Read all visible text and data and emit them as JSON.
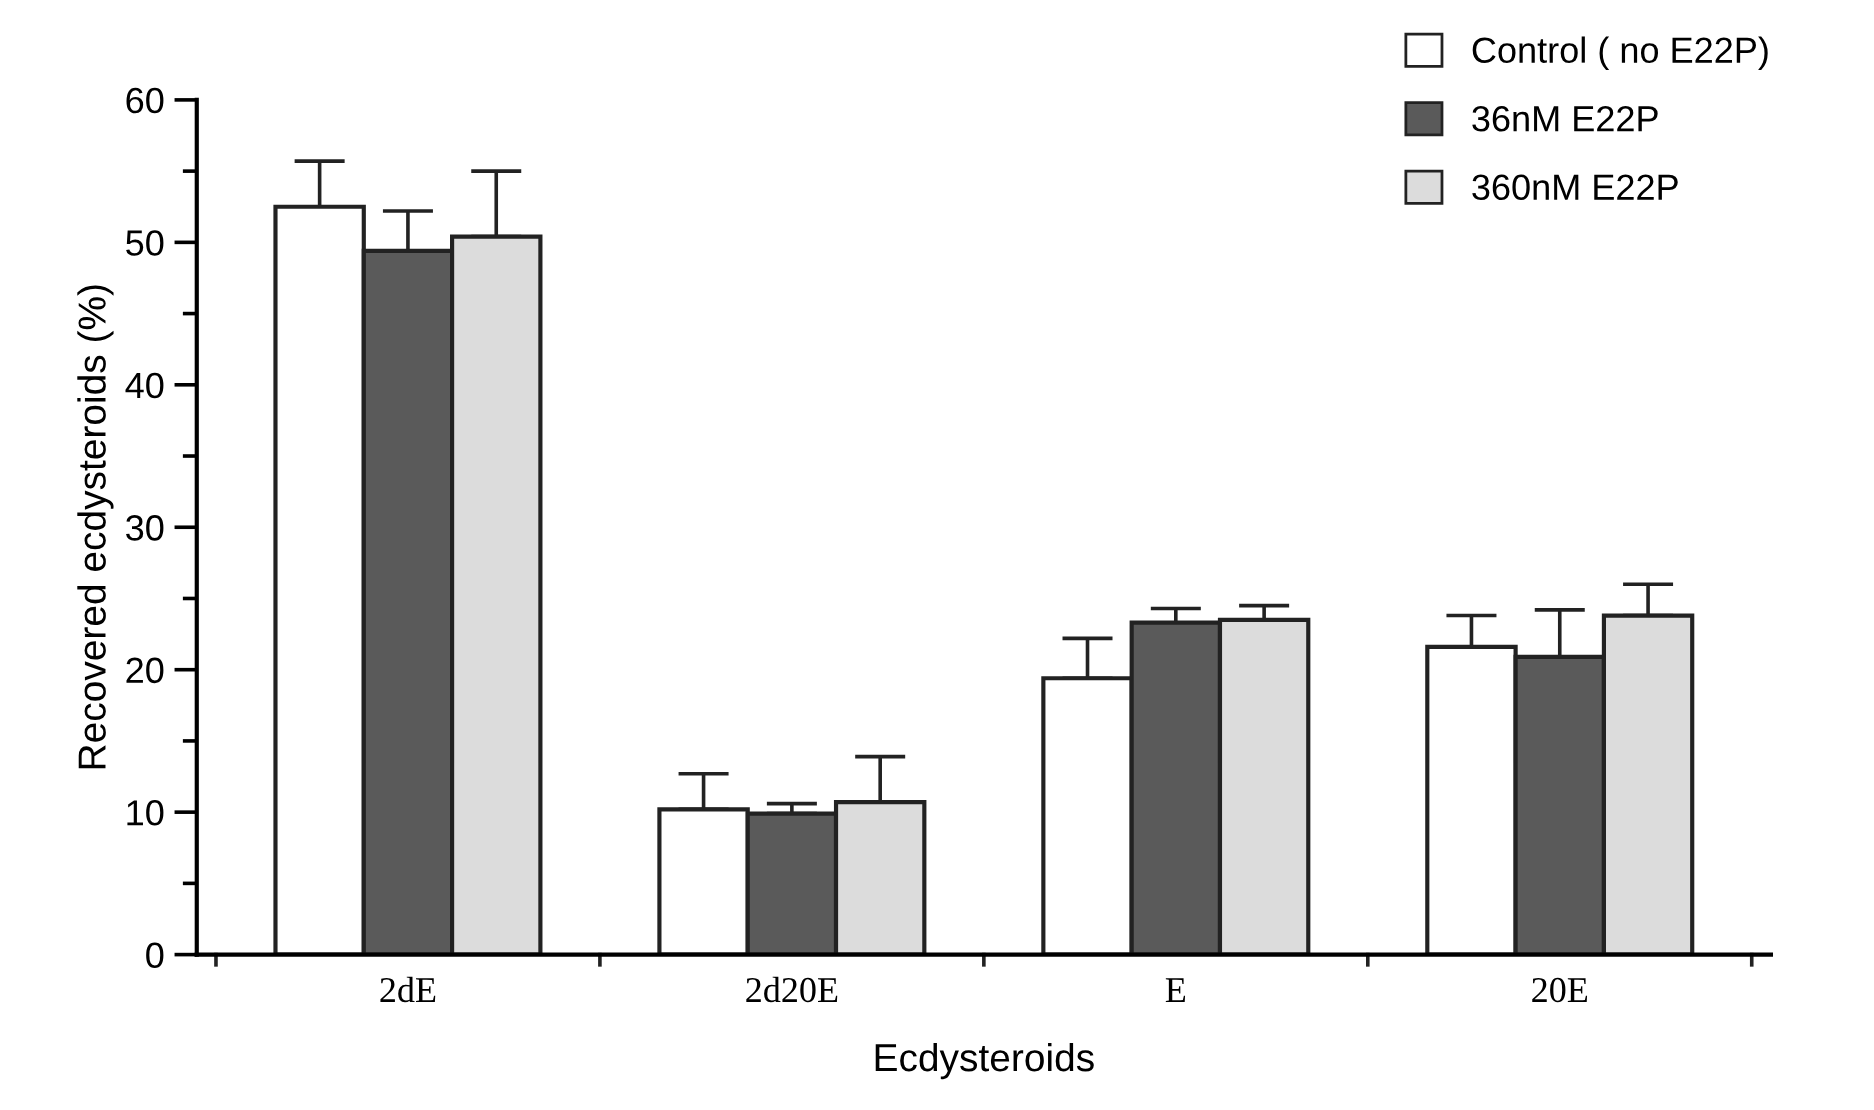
{
  "chart_data": {
    "type": "bar",
    "xlabel": "Ecdysteroids",
    "ylabel": "Recovered ecdysteroids (%)",
    "categories": [
      "2dE",
      "2d20E",
      "E",
      "20E"
    ],
    "series": [
      {
        "name": "Control ( no E22P)",
        "color": "#ffffff",
        "values": [
          52.5,
          10.2,
          19.4,
          21.6
        ],
        "errors": [
          3.2,
          2.5,
          2.8,
          2.2
        ]
      },
      {
        "name": "36nM E22P",
        "color": "#5a5a5a",
        "values": [
          49.4,
          9.9,
          23.3,
          20.9
        ],
        "errors": [
          2.8,
          0.7,
          1.0,
          3.3
        ]
      },
      {
        "name": "360nM E22P",
        "color": "#dcdcdc",
        "values": [
          50.4,
          10.7,
          23.5,
          23.8
        ],
        "errors": [
          4.6,
          3.2,
          1.0,
          2.2
        ]
      }
    ],
    "ylim": [
      0,
      60
    ],
    "yticks": [
      0,
      10,
      20,
      30,
      40,
      50,
      60
    ],
    "grid": false,
    "legend": "top right"
  }
}
